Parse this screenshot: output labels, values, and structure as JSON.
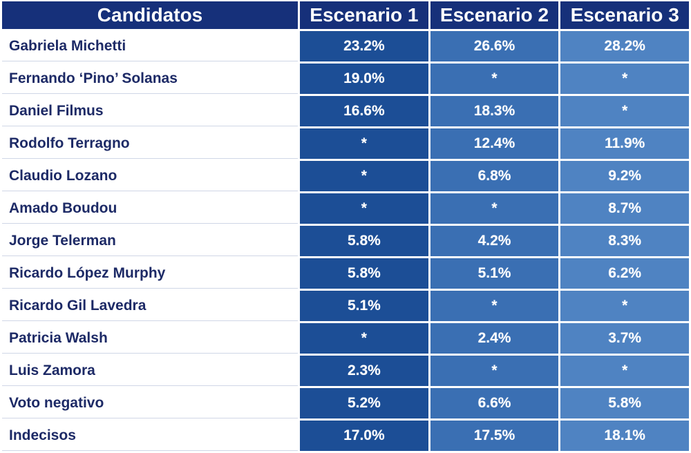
{
  "chart_data": {
    "type": "table",
    "columns": [
      "Candidatos",
      "Escenario 1",
      "Escenario 2",
      "Escenario 3"
    ],
    "rows": [
      {
        "name": "Gabriela Michetti",
        "values": [
          "23.2%",
          "26.6%",
          "28.2%"
        ]
      },
      {
        "name": "Fernando ‘Pino’ Solanas",
        "values": [
          "19.0%",
          "*",
          "*"
        ]
      },
      {
        "name": "Daniel Filmus",
        "values": [
          "16.6%",
          "18.3%",
          "*"
        ]
      },
      {
        "name": "Rodolfo Terragno",
        "values": [
          "*",
          "12.4%",
          "11.9%"
        ]
      },
      {
        "name": "Claudio Lozano",
        "values": [
          "*",
          "6.8%",
          "9.2%"
        ]
      },
      {
        "name": "Amado Boudou",
        "values": [
          "*",
          "*",
          "8.7%"
        ]
      },
      {
        "name": "Jorge Telerman",
        "values": [
          "5.8%",
          "4.2%",
          "8.3%"
        ]
      },
      {
        "name": "Ricardo López Murphy",
        "values": [
          "5.8%",
          "5.1%",
          "6.2%"
        ]
      },
      {
        "name": "Ricardo Gil Lavedra",
        "values": [
          "5.1%",
          "*",
          "*"
        ]
      },
      {
        "name": "Patricia Walsh",
        "values": [
          "*",
          "2.4%",
          "3.7%"
        ]
      },
      {
        "name": "Luis Zamora",
        "values": [
          "2.3%",
          "*",
          "*"
        ]
      },
      {
        "name": "Voto negativo",
        "values": [
          "5.2%",
          "6.6%",
          "5.8%"
        ]
      },
      {
        "name": "Indecisos",
        "values": [
          "17.0%",
          "17.5%",
          "18.1%"
        ]
      }
    ],
    "colors": {
      "header_bg": "#16307a",
      "name_text": "#1d2a66",
      "scenario_1_bg": "#1c4e96",
      "scenario_2_bg": "#3a6fb3",
      "scenario_3_bg": "#4f83c2"
    }
  }
}
